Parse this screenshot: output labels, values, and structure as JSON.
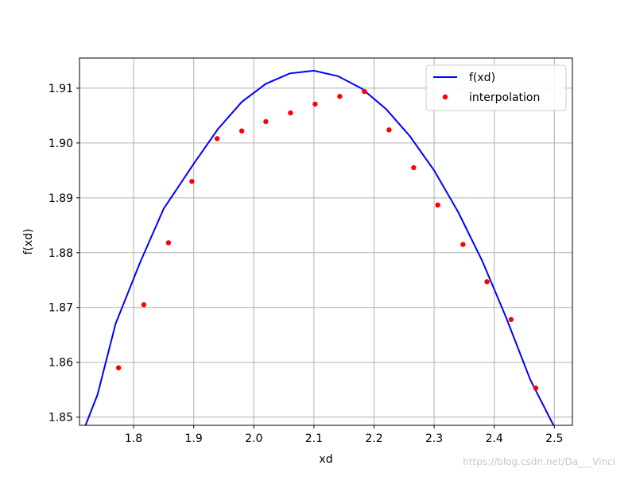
{
  "chart_data": {
    "type": "line",
    "xlabel": "xd",
    "ylabel": "f(xd)",
    "xlim": [
      1.71,
      2.53
    ],
    "ylim": [
      1.8485,
      1.9155
    ],
    "xticks": [
      1.8,
      1.9,
      2.0,
      2.1,
      2.2,
      2.3,
      2.4,
      2.5
    ],
    "yticks": [
      1.85,
      1.86,
      1.87,
      1.88,
      1.89,
      1.9,
      1.91
    ],
    "grid": true,
    "legend_position": "top-right",
    "series": [
      {
        "name": "f(xd)",
        "style": "line",
        "color": "#0000ff",
        "x": [
          1.72,
          1.74,
          1.77,
          1.81,
          1.85,
          1.9,
          1.94,
          1.98,
          2.02,
          2.06,
          2.1,
          2.14,
          2.18,
          2.22,
          2.26,
          2.3,
          2.34,
          2.38,
          2.42,
          2.46,
          2.5
        ],
        "y": [
          1.8485,
          1.8541,
          1.867,
          1.878,
          1.888,
          1.8962,
          1.9025,
          1.9075,
          1.9108,
          1.9127,
          1.9132,
          1.9122,
          1.9099,
          1.9062,
          1.9012,
          1.895,
          1.8874,
          1.8785,
          1.8681,
          1.8568,
          1.8482
        ]
      },
      {
        "name": "interpolation",
        "style": "scatter",
        "color": "#ff0000",
        "x": [
          1.775,
          1.817,
          1.858,
          1.897,
          1.939,
          1.98,
          2.02,
          2.061,
          2.102,
          2.143,
          2.184,
          2.225,
          2.266,
          2.306,
          2.348,
          2.388,
          2.428,
          2.469
        ],
        "y": [
          1.859,
          1.8705,
          1.8818,
          1.893,
          1.9008,
          1.9022,
          1.9039,
          1.9055,
          1.9071,
          1.9085,
          1.9094,
          1.9024,
          1.8955,
          1.8887,
          1.8815,
          1.8747,
          1.8678,
          1.8553
        ]
      }
    ]
  },
  "watermark": "https://blog.csdn.net/Da___Vinci"
}
